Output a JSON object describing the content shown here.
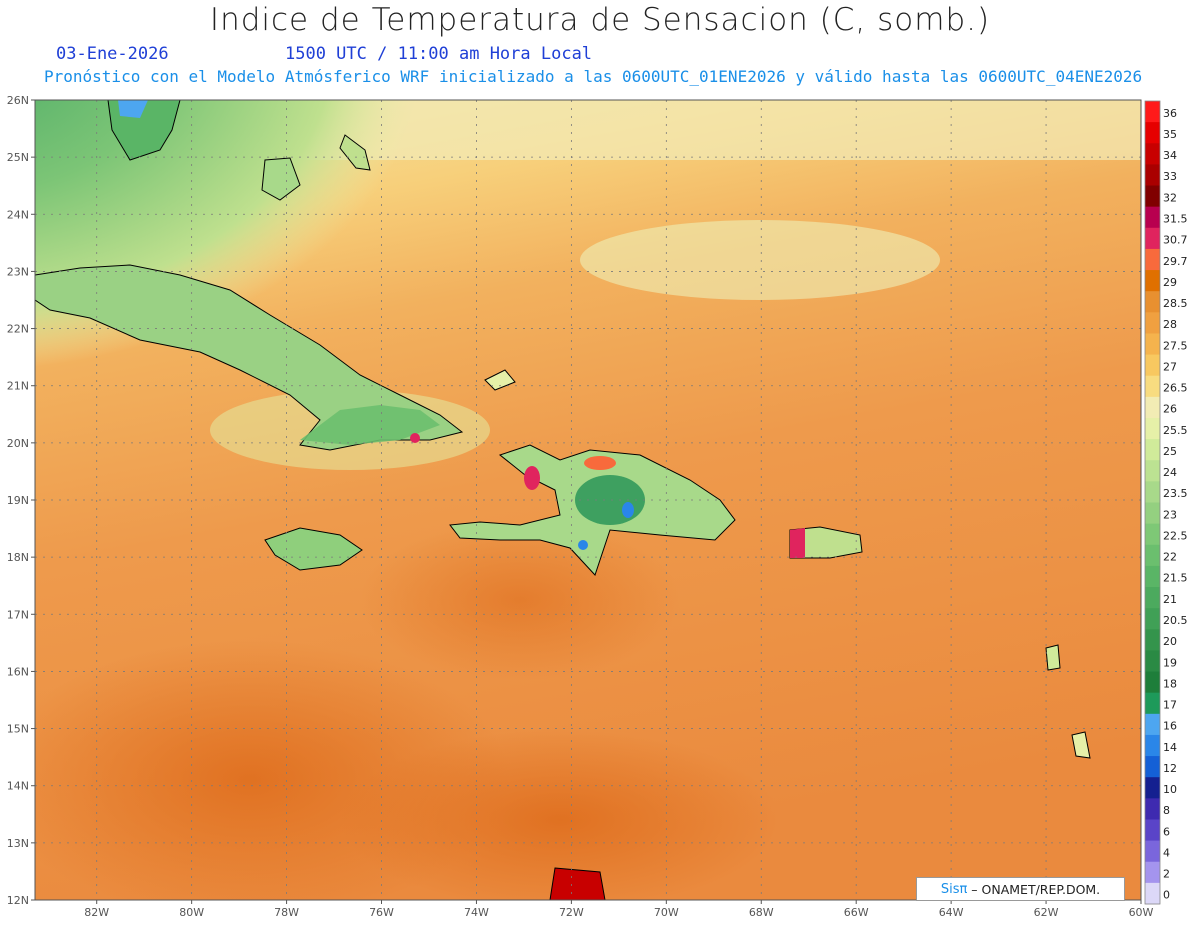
{
  "title": "Indice de Temperatura de Sensacion (C, somb.)",
  "date": "03-Ene-2026",
  "time": "1500 UTC / 11:00 am Hora Local",
  "subtitle": "Pronóstico con el Modelo Atmósferico WRF inicializado a las 0600UTC_01ENE2026 y válido hasta las  0600UTC_04ENE2026",
  "credit": {
    "logo": "Sisπ",
    "text": "– ONAMET/REP.DOM."
  },
  "map": {
    "lat_labels": [
      "26N",
      "25N",
      "24N",
      "23N",
      "22N",
      "21N",
      "20N",
      "19N",
      "18N",
      "17N",
      "16N",
      "15N",
      "14N",
      "13N",
      "12N"
    ],
    "lon_labels": [
      "82W",
      "80W",
      "78W",
      "76W",
      "74W",
      "72W",
      "70W",
      "68W",
      "66W",
      "64W",
      "62W",
      "60W"
    ],
    "lat_range": [
      12,
      26
    ],
    "lon_range": [
      -83.3,
      -60
    ],
    "grid": true
  },
  "legend": {
    "labels": [
      "36",
      "35",
      "34",
      "33",
      "32",
      "31.5",
      "30.7",
      "29.7",
      "29",
      "28.5",
      "28",
      "27.5",
      "27",
      "26.5",
      "26",
      "25.5",
      "25",
      "24",
      "23.5",
      "23",
      "22.5",
      "22",
      "21.5",
      "21",
      "20.5",
      "20",
      "19",
      "18",
      "17",
      "16",
      "14",
      "12",
      "10",
      "8",
      "6",
      "4",
      "2",
      "0"
    ],
    "colors": [
      "#ff1a1a",
      "#e60000",
      "#c80000",
      "#aa0000",
      "#800000",
      "#b8004f",
      "#e0245e",
      "#f86a3c",
      "#e07000",
      "#e89030",
      "#f0a040",
      "#f5b34d",
      "#f8c860",
      "#f8dc80",
      "#f2ecb4",
      "#e6f0a8",
      "#d0eb9a",
      "#bce292",
      "#a8d98a",
      "#94d080",
      "#7ec876",
      "#6bbf6e",
      "#5ab566",
      "#4caa5e",
      "#40a056",
      "#34944c",
      "#2a8a44",
      "#1e7e3a",
      "#1e9a5a",
      "#4da6f0",
      "#2a86e8",
      "#1460d6",
      "#142090",
      "#3e2ab0",
      "#5a44c8",
      "#7a66dc",
      "#a494ee",
      "#dcd8f8"
    ]
  },
  "colors": {
    "ocean_warm": "#ec9248",
    "ocean_mid": "#f0ad58",
    "north_pale": "#f2e2a0",
    "land_green": "#8fcf7c",
    "land_dark": "#3ea060",
    "subtitle_blue": "#1a8fe8",
    "date_blue": "#1f3fd6"
  }
}
